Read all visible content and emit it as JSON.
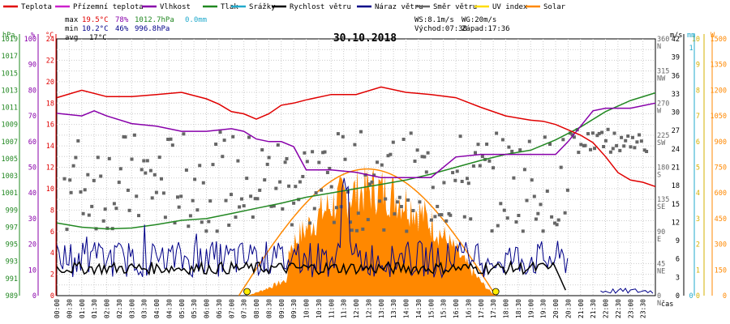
{
  "chart_data": {
    "type": "line",
    "title": "30.10.2018",
    "legend": [
      {
        "label": "Teplota",
        "color": "#e00000"
      },
      {
        "label": "Přízemní teplota",
        "color": "#cc22cc"
      },
      {
        "label": "Vlhkost",
        "color": "#8800aa"
      },
      {
        "label": "Tlak",
        "color": "#228822"
      },
      {
        "label": "Srážky",
        "color": "#22aacc"
      },
      {
        "label": "Rychlost větru",
        "color": "#000000"
      },
      {
        "label": "Náraz větru",
        "color": "#000088"
      },
      {
        "label": "Směr větru",
        "color": "#666666"
      },
      {
        "label": "UV index",
        "color": "#ffdd00"
      },
      {
        "label": "Solar",
        "color": "#ff8800"
      }
    ],
    "stats": {
      "max_label": "max",
      "max_temp": "19.5°C",
      "max_hum": "78%",
      "max_press": "1012.7hPa",
      "max_rain": "0.0mm",
      "min_label": "min",
      "min_temp": "10.2°C",
      "min_hum": "46%",
      "min_press": "996.8hPa",
      "avg_label": "avg",
      "avg_temp": "17°C",
      "ws": "WS:8.1m/s",
      "wg": "WG:20m/s",
      "sunrise": "Východ:07:38",
      "sunset": "Západ:17:36"
    },
    "axes": {
      "hpa": {
        "unit": "hPa",
        "ticks": [
          "989",
          "991",
          "993",
          "995",
          "997",
          "999",
          "1001",
          "1003",
          "1005",
          "1007",
          "1009",
          "1011",
          "1013",
          "1015",
          "1017",
          "1019"
        ],
        "color": "#228822"
      },
      "pct": {
        "unit": "%",
        "ticks": [
          "0",
          "10",
          "20",
          "30",
          "40",
          "50",
          "60",
          "70",
          "80",
          "90",
          "100"
        ],
        "color": "#8800aa"
      },
      "temp": {
        "unit": "°C",
        "ticks": [
          "0",
          "2",
          "4",
          "6",
          "8",
          "10",
          "12",
          "14",
          "16",
          "18",
          "20",
          "22",
          "24"
        ],
        "color": "#e00000"
      },
      "dir": {
        "ticks": [
          "0",
          "45",
          "90",
          "135",
          "180",
          "225",
          "270",
          "315",
          "360"
        ],
        "labels": [
          "N",
          "NE",
          "E",
          "SE",
          "S",
          "SW",
          "W",
          "NW",
          "N"
        ],
        "color": "#666666"
      },
      "ms": {
        "unit": "m/s",
        "ticks": [
          "0",
          "3",
          "6",
          "9",
          "12",
          "15",
          "18",
          "21",
          "24",
          "27",
          "30",
          "33",
          "36",
          "39",
          "42"
        ],
        "color": "#000000"
      },
      "mm": {
        "unit": "mm",
        "ticks": [
          "0",
          "1"
        ],
        "color": "#22aacc"
      },
      "uv": {
        "ticks": [
          "0",
          "1",
          "2",
          "3",
          "4",
          "5",
          "6",
          "7",
          "8",
          "9",
          "10"
        ],
        "color": "#d4b000"
      },
      "w": {
        "unit": "W",
        "ticks": [
          "0",
          "150",
          "300",
          "450",
          "600",
          "750",
          "900",
          "1050",
          "1200",
          "1350",
          "1500"
        ],
        "color": "#ff8800"
      },
      "x_ticks": [
        "00:00",
        "00:30",
        "01:00",
        "01:30",
        "02:00",
        "02:30",
        "03:00",
        "03:30",
        "04:00",
        "04:30",
        "05:00",
        "05:30",
        "06:00",
        "06:30",
        "07:00",
        "07:30",
        "08:00",
        "08:30",
        "09:00",
        "09:30",
        "10:00",
        "10:30",
        "11:00",
        "11:30",
        "12:00",
        "12:30",
        "13:00",
        "13:30",
        "14:00",
        "14:30",
        "15:00",
        "15:30",
        "16:00",
        "16:30",
        "17:00",
        "17:30",
        "18:00",
        "18:30",
        "19:00",
        "19:30",
        "20:00",
        "20:30",
        "21:00",
        "21:30",
        "22:00",
        "22:30",
        "23:00",
        "23:30"
      ],
      "x_unit": "čas"
    },
    "series": [
      {
        "name": "Teplota",
        "unit": "°C",
        "x_hours": [
          0,
          1,
          2,
          3,
          4,
          5,
          6,
          6.5,
          7,
          7.5,
          8,
          8.5,
          9,
          9.5,
          10,
          11,
          12,
          13,
          14,
          15,
          16,
          17,
          18,
          19,
          19.5,
          20,
          20.5,
          21,
          21.5,
          22,
          22.5,
          23,
          23.5,
          24
        ],
        "values": [
          18.5,
          19.2,
          18.6,
          18.6,
          18.8,
          19.0,
          18.4,
          17.9,
          17.2,
          17.0,
          16.5,
          17.0,
          17.8,
          18.0,
          18.3,
          18.8,
          18.8,
          19.5,
          19.0,
          18.8,
          18.5,
          17.6,
          16.8,
          16.4,
          16.3,
          16.0,
          15.5,
          15.0,
          14.3,
          13.0,
          11.5,
          10.8,
          10.6,
          10.2
        ]
      },
      {
        "name": "Vlhkost",
        "unit": "%",
        "x_hours": [
          0,
          1,
          1.5,
          2,
          3,
          4,
          5,
          6,
          7,
          7.5,
          8,
          8.5,
          9,
          9.5,
          10,
          11,
          12,
          12.5,
          13,
          13.5,
          14,
          15,
          16,
          17,
          18,
          19,
          20,
          20.5,
          21,
          21.5,
          22,
          23,
          24
        ],
        "values": [
          71,
          70,
          72,
          70,
          67,
          66,
          64,
          64,
          65,
          64,
          61,
          60,
          60,
          58,
          49,
          49,
          48,
          47,
          46,
          46,
          46,
          46,
          54,
          55,
          55,
          55,
          55,
          60,
          66,
          72,
          73,
          73,
          75
        ]
      },
      {
        "name": "Tlak",
        "unit": "hPa",
        "x_hours": [
          0,
          1,
          2,
          3,
          4,
          5,
          6,
          7,
          8,
          9,
          10,
          11,
          12,
          13,
          14,
          15,
          16,
          17,
          18,
          19,
          20,
          21,
          22,
          23,
          24
        ],
        "values": [
          997.5,
          997.0,
          996.8,
          996.9,
          997.3,
          997.8,
          998.0,
          998.6,
          999.2,
          999.8,
          1000.5,
          1001.0,
          1001.5,
          1002.0,
          1002.5,
          1003.2,
          1004.0,
          1004.8,
          1005.5,
          1006.0,
          1007.2,
          1008.7,
          1010.5,
          1011.8,
          1012.7
        ]
      },
      {
        "name": "Rychlost větru",
        "unit": "m/s",
        "avg_level": 4.5,
        "to_hour": 20.5
      },
      {
        "name": "Náraz větru",
        "unit": "m/s",
        "max": 20,
        "from_hour": 0,
        "to_hour": 20.5,
        "late_from": 21.8,
        "late_to": 24,
        "late_level": 1.0
      },
      {
        "name": "Směr větru",
        "unit": "°",
        "type": "scatter",
        "center": 160,
        "spread": 70
      },
      {
        "name": "Solar",
        "unit": "W",
        "type": "area",
        "from_hour": 7.6,
        "to_hour": 17.6,
        "peak": 620
      },
      {
        "name": "Solar theoretical",
        "unit": "W",
        "type": "line",
        "from_hour": 7.3,
        "to_hour": 17.6,
        "peak": 740
      }
    ],
    "markers": [
      {
        "name": "sunrise",
        "hour": 7.63
      },
      {
        "name": "sunset",
        "hour": 17.6
      }
    ],
    "grid": true
  }
}
